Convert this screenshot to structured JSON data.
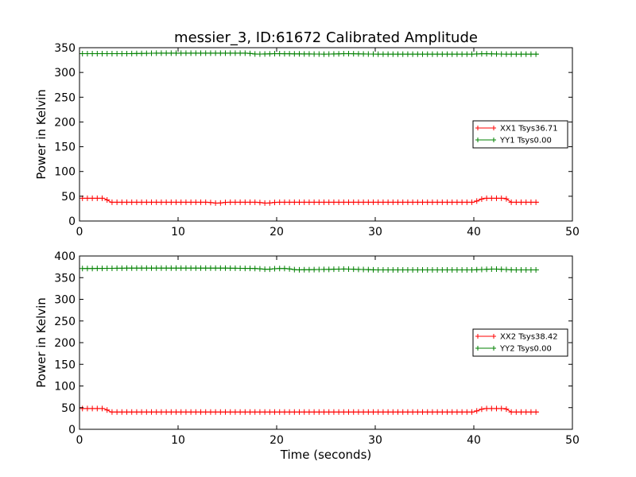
{
  "chart_data": [
    {
      "type": "line",
      "title": "messier_3, ID:61672 Calibrated Amplitude",
      "xlabel": "",
      "ylabel": "Power in Kelvin",
      "xlim": [
        0,
        50
      ],
      "ylim": [
        0,
        350
      ],
      "xticks": [
        "0",
        "10",
        "20",
        "30",
        "40",
        "50"
      ],
      "yticks": [
        "0",
        "50",
        "100",
        "150",
        "200",
        "250",
        "300",
        "350"
      ],
      "grid": false,
      "legend_position": "center-right",
      "series": [
        {
          "name": "XX1 Tsys36.71",
          "color": "#ff0000",
          "marker": "plus",
          "points": [
            [
              0.3,
              46
            ],
            [
              2.5,
              46
            ],
            [
              3.2,
              38
            ],
            [
              13.0,
              38
            ],
            [
              14.0,
              36
            ],
            [
              15.0,
              38
            ],
            [
              18.0,
              38
            ],
            [
              19.0,
              36
            ],
            [
              20.0,
              38
            ],
            [
              40.0,
              38
            ],
            [
              41.0,
              46
            ],
            [
              43.2,
              46
            ],
            [
              43.8,
              38
            ],
            [
              46.6,
              38
            ]
          ]
        },
        {
          "name": "YY1 Tsys0.00",
          "color": "#008000",
          "marker": "plus",
          "points": [
            [
              0.3,
              338
            ],
            [
              5.0,
              338
            ],
            [
              8.0,
              339
            ],
            [
              12.0,
              339
            ],
            [
              17.0,
              339
            ],
            [
              18.0,
              337
            ],
            [
              20.0,
              338
            ],
            [
              25.0,
              337
            ],
            [
              27.0,
              338
            ],
            [
              30.0,
              337
            ],
            [
              40.0,
              337
            ],
            [
              41.0,
              338
            ],
            [
              43.0,
              337
            ],
            [
              46.6,
              337
            ]
          ]
        }
      ]
    },
    {
      "type": "line",
      "title": "",
      "xlabel": "Time (seconds)",
      "ylabel": "Power in Kelvin",
      "xlim": [
        0,
        50
      ],
      "ylim": [
        0,
        400
      ],
      "xticks": [
        "0",
        "10",
        "20",
        "30",
        "40",
        "50"
      ],
      "yticks": [
        "0",
        "50",
        "100",
        "150",
        "200",
        "250",
        "300",
        "350",
        "400"
      ],
      "grid": false,
      "legend_position": "center-right",
      "series": [
        {
          "name": "XX2 Tsys38.42",
          "color": "#ff0000",
          "marker": "plus",
          "points": [
            [
              0.3,
              48
            ],
            [
              2.5,
              48
            ],
            [
              3.2,
              40
            ],
            [
              40.0,
              40
            ],
            [
              41.0,
              48
            ],
            [
              43.2,
              48
            ],
            [
              43.8,
              40
            ],
            [
              46.6,
              40
            ]
          ]
        },
        {
          "name": "YY2 Tsys0.00",
          "color": "#008000",
          "marker": "plus",
          "points": [
            [
              0.3,
              371
            ],
            [
              5.0,
              372
            ],
            [
              10.0,
              372
            ],
            [
              15.0,
              372
            ],
            [
              18.0,
              371
            ],
            [
              19.0,
              369
            ],
            [
              20.0,
              371
            ],
            [
              21.0,
              371
            ],
            [
              22.0,
              368
            ],
            [
              25.0,
              369
            ],
            [
              27.0,
              370
            ],
            [
              30.0,
              368
            ],
            [
              40.0,
              368
            ],
            [
              42.0,
              370
            ],
            [
              44.0,
              368
            ],
            [
              46.6,
              368
            ]
          ]
        }
      ]
    }
  ]
}
